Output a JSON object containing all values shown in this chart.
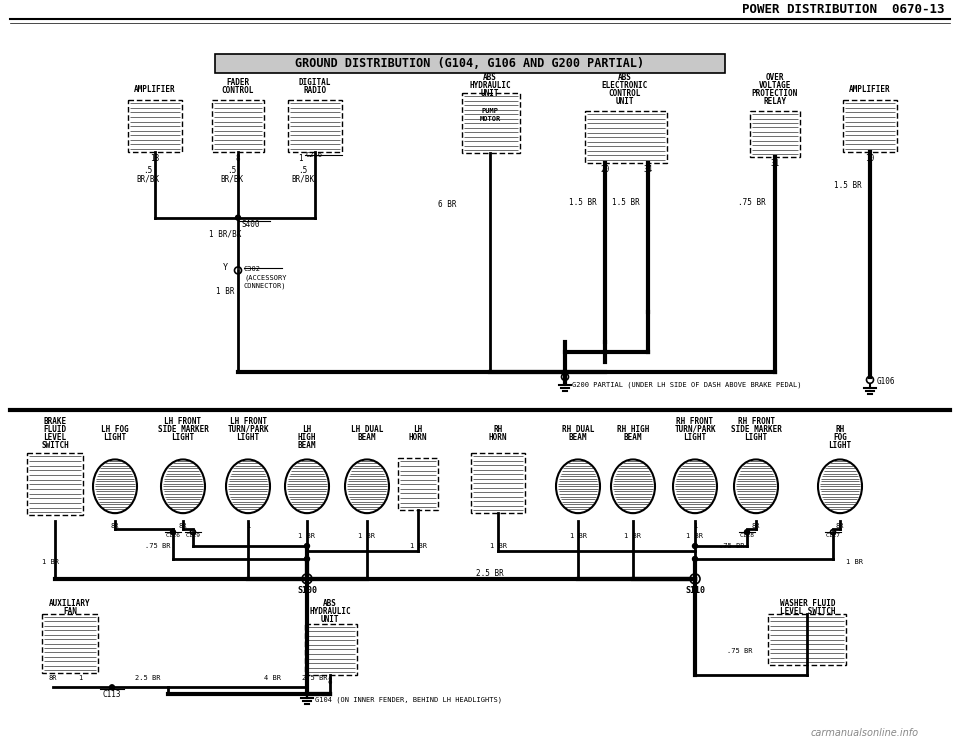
{
  "title_main": "POWER DISTRIBUTION  0670-13",
  "title_sub": "GROUND DISTRIBUTION (G104, G106 AND G200 PARTIAL)",
  "bg_color": "#ffffff",
  "text_color": "#000000",
  "line_color": "#000000",
  "watermark": "carmanualsonline.info"
}
